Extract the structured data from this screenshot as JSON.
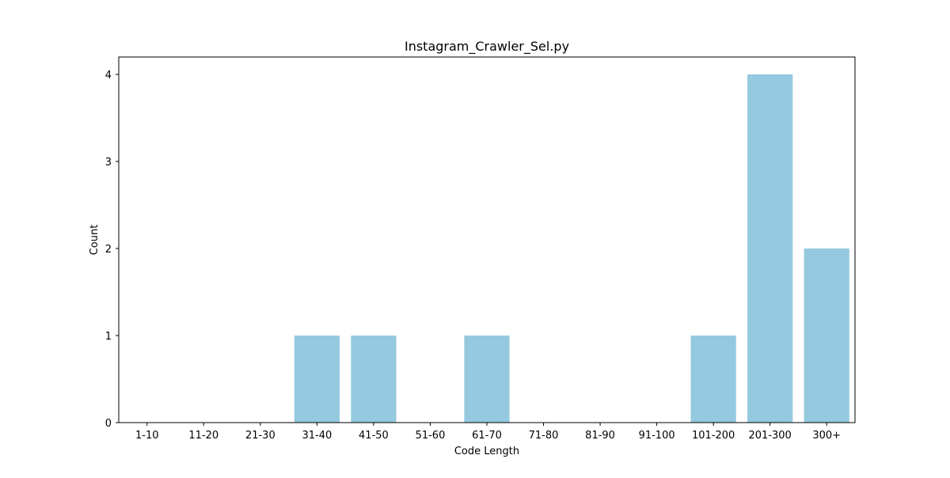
{
  "chart_data": {
    "type": "bar",
    "title": "Instagram_Crawler_Sel.py",
    "xlabel": "Code Length",
    "ylabel": "Count",
    "categories": [
      "1-10",
      "11-20",
      "21-30",
      "31-40",
      "41-50",
      "51-60",
      "61-70",
      "71-80",
      "81-90",
      "91-100",
      "101-200",
      "201-300",
      "300+"
    ],
    "values": [
      0,
      0,
      0,
      1,
      1,
      0,
      1,
      0,
      0,
      0,
      1,
      4,
      2
    ],
    "yticks": [
      0,
      1,
      2,
      3,
      4
    ],
    "ylim": [
      0,
      4.2
    ],
    "grid": false,
    "legend": false,
    "bar_color": "#95c9df"
  }
}
